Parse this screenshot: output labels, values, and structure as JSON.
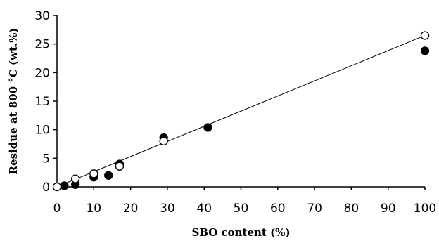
{
  "chart_data": {
    "type": "scatter",
    "title": "",
    "xlabel": "SBO content (%)",
    "ylabel": "Residue at 800 °C (wt.%)",
    "xlim": [
      0,
      100
    ],
    "ylim": [
      0,
      30
    ],
    "xticks": [
      0,
      10,
      20,
      30,
      40,
      50,
      60,
      70,
      80,
      90,
      100
    ],
    "yticks": [
      0,
      5,
      10,
      15,
      20,
      25,
      30
    ],
    "grid": false,
    "legend": "none",
    "series": [
      {
        "marker": "filled-circle",
        "color": "#000000",
        "points": [
          {
            "x": 2,
            "y": 0.2
          },
          {
            "x": 5,
            "y": 0.4
          },
          {
            "x": 10,
            "y": 1.7
          },
          {
            "x": 14,
            "y": 2.0
          },
          {
            "x": 17,
            "y": 4.0
          },
          {
            "x": 29,
            "y": 8.6
          },
          {
            "x": 41,
            "y": 10.4
          },
          {
            "x": 100,
            "y": 23.8
          }
        ]
      },
      {
        "marker": "open-circle",
        "color": "#000000",
        "points": [
          {
            "x": 0,
            "y": 0
          },
          {
            "x": 5,
            "y": 1.4
          },
          {
            "x": 10,
            "y": 2.3
          },
          {
            "x": 17,
            "y": 3.6
          },
          {
            "x": 29,
            "y": 8.0
          },
          {
            "x": 100,
            "y": 26.5
          }
        ]
      }
    ],
    "trendline": {
      "x": [
        0,
        100
      ],
      "y": [
        0,
        26.5
      ]
    }
  }
}
